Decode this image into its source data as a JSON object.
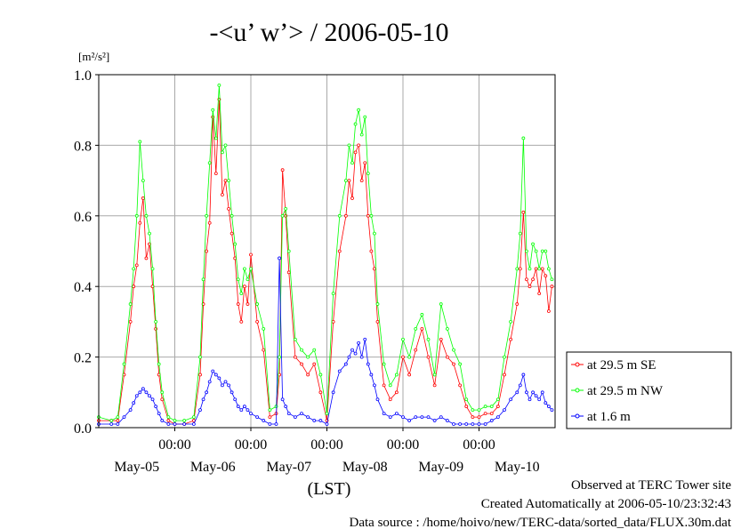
{
  "chart_data": {
    "type": "line",
    "title": "-<u’ w’> / 2006-05-10",
    "ylabel_unit": "[m²/s²]",
    "xlabel": "(LST)",
    "ylim": [
      0,
      1.0
    ],
    "yticks": [
      "0.0",
      "0.2",
      "0.4",
      "0.6",
      "0.8",
      "1.0"
    ],
    "xlim_hours": [
      0,
      144
    ],
    "xtick_time_labels": [
      "00:00",
      "00:00",
      "00:00",
      "00:00",
      "00:00"
    ],
    "xtick_date_labels": [
      "May-05",
      "May-06",
      "May-07",
      "May-08",
      "May-09",
      "May-10"
    ],
    "grid": true,
    "legend_position": "right",
    "series": [
      {
        "name": "at 29.5 m SE",
        "color": "#ff0000",
        "x": [
          0,
          4,
          6,
          8,
          10,
          11,
          12,
          13,
          14,
          15,
          16,
          17,
          18,
          19,
          20,
          22,
          24,
          27,
          30,
          32,
          33,
          34,
          35,
          36,
          37,
          38,
          39,
          40,
          41,
          42,
          43,
          44,
          45,
          46,
          47,
          48,
          50,
          52,
          54,
          56,
          57,
          58,
          59,
          60,
          62,
          64,
          66,
          68,
          70,
          72,
          74,
          76,
          78,
          79,
          80,
          81,
          82,
          83,
          84,
          85,
          86,
          87,
          88,
          90,
          92,
          94,
          96,
          98,
          100,
          102,
          104,
          106,
          108,
          110,
          112,
          114,
          116,
          118,
          120,
          122,
          124,
          126,
          128,
          130,
          132,
          133,
          134,
          135,
          136,
          137,
          138,
          139,
          140,
          141,
          142,
          143
        ],
        "y": [
          0.02,
          0.02,
          0.02,
          0.15,
          0.3,
          0.4,
          0.46,
          0.58,
          0.65,
          0.48,
          0.52,
          0.4,
          0.28,
          0.15,
          0.08,
          0.02,
          0.01,
          0.01,
          0.02,
          0.15,
          0.35,
          0.5,
          0.58,
          0.88,
          0.72,
          0.93,
          0.66,
          0.7,
          0.62,
          0.55,
          0.48,
          0.35,
          0.3,
          0.4,
          0.35,
          0.49,
          0.3,
          0.22,
          0.03,
          0.04,
          0.15,
          0.73,
          0.6,
          0.44,
          0.2,
          0.18,
          0.15,
          0.18,
          0.1,
          0.02,
          0.3,
          0.5,
          0.6,
          0.7,
          0.65,
          0.78,
          0.8,
          0.7,
          0.75,
          0.6,
          0.5,
          0.45,
          0.3,
          0.12,
          0.08,
          0.1,
          0.2,
          0.15,
          0.22,
          0.28,
          0.2,
          0.12,
          0.25,
          0.2,
          0.18,
          0.12,
          0.06,
          0.03,
          0.03,
          0.04,
          0.04,
          0.06,
          0.15,
          0.25,
          0.35,
          0.45,
          0.61,
          0.42,
          0.4,
          0.42,
          0.45,
          0.38,
          0.45,
          0.43,
          0.33,
          0.4
        ]
      },
      {
        "name": "at 29.5 m NW",
        "color": "#00ff00",
        "x": [
          0,
          4,
          6,
          8,
          10,
          11,
          12,
          13,
          14,
          15,
          16,
          17,
          18,
          19,
          20,
          22,
          24,
          27,
          30,
          32,
          33,
          34,
          35,
          36,
          37,
          38,
          39,
          40,
          41,
          42,
          43,
          44,
          45,
          46,
          47,
          48,
          50,
          52,
          54,
          56,
          57,
          58,
          59,
          60,
          62,
          64,
          66,
          68,
          70,
          72,
          74,
          76,
          78,
          79,
          80,
          81,
          82,
          83,
          84,
          85,
          86,
          87,
          88,
          90,
          92,
          94,
          96,
          98,
          100,
          102,
          104,
          106,
          108,
          110,
          112,
          114,
          116,
          118,
          120,
          122,
          124,
          126,
          128,
          130,
          132,
          133,
          134,
          135,
          136,
          137,
          138,
          139,
          140,
          141,
          142,
          143
        ],
        "y": [
          0.03,
          0.02,
          0.03,
          0.18,
          0.35,
          0.45,
          0.6,
          0.81,
          0.7,
          0.6,
          0.55,
          0.45,
          0.3,
          0.18,
          0.1,
          0.03,
          0.02,
          0.02,
          0.03,
          0.2,
          0.42,
          0.6,
          0.75,
          0.9,
          0.82,
          0.97,
          0.78,
          0.8,
          0.7,
          0.6,
          0.52,
          0.42,
          0.38,
          0.45,
          0.42,
          0.45,
          0.35,
          0.28,
          0.05,
          0.06,
          0.2,
          0.6,
          0.62,
          0.5,
          0.25,
          0.22,
          0.2,
          0.22,
          0.15,
          0.04,
          0.38,
          0.6,
          0.7,
          0.8,
          0.75,
          0.86,
          0.9,
          0.83,
          0.88,
          0.72,
          0.6,
          0.55,
          0.35,
          0.18,
          0.12,
          0.15,
          0.25,
          0.2,
          0.28,
          0.32,
          0.25,
          0.15,
          0.35,
          0.28,
          0.22,
          0.18,
          0.08,
          0.05,
          0.05,
          0.06,
          0.06,
          0.08,
          0.2,
          0.3,
          0.45,
          0.55,
          0.82,
          0.5,
          0.45,
          0.52,
          0.5,
          0.45,
          0.5,
          0.5,
          0.45,
          0.42
        ]
      },
      {
        "name": "at 1.6 m",
        "color": "#0000ff",
        "x": [
          0,
          4,
          6,
          8,
          10,
          11,
          12,
          13,
          14,
          15,
          16,
          17,
          18,
          19,
          20,
          22,
          24,
          27,
          30,
          32,
          33,
          34,
          35,
          36,
          37,
          38,
          39,
          40,
          41,
          42,
          43,
          44,
          45,
          46,
          47,
          48,
          50,
          52,
          54,
          56,
          57,
          58,
          59,
          60,
          62,
          64,
          66,
          68,
          70,
          72,
          74,
          76,
          78,
          79,
          80,
          81,
          82,
          83,
          84,
          85,
          86,
          87,
          88,
          90,
          92,
          94,
          96,
          98,
          100,
          102,
          104,
          106,
          108,
          110,
          112,
          114,
          116,
          118,
          120,
          122,
          124,
          126,
          128,
          130,
          132,
          133,
          134,
          135,
          136,
          137,
          138,
          139,
          140,
          141,
          142,
          143
        ],
        "y": [
          0.01,
          0.01,
          0.01,
          0.03,
          0.05,
          0.07,
          0.09,
          0.1,
          0.11,
          0.1,
          0.09,
          0.08,
          0.06,
          0.04,
          0.02,
          0.01,
          0.01,
          0.01,
          0.01,
          0.05,
          0.08,
          0.1,
          0.13,
          0.16,
          0.15,
          0.14,
          0.12,
          0.13,
          0.12,
          0.1,
          0.08,
          0.06,
          0.05,
          0.06,
          0.05,
          0.04,
          0.03,
          0.02,
          0.01,
          0.01,
          0.48,
          0.08,
          0.06,
          0.04,
          0.03,
          0.04,
          0.03,
          0.02,
          0.02,
          0.01,
          0.1,
          0.16,
          0.18,
          0.2,
          0.22,
          0.21,
          0.24,
          0.2,
          0.25,
          0.18,
          0.15,
          0.12,
          0.08,
          0.04,
          0.03,
          0.04,
          0.03,
          0.02,
          0.03,
          0.03,
          0.03,
          0.02,
          0.03,
          0.02,
          0.01,
          0.01,
          0.01,
          0.01,
          0.01,
          0.01,
          0.02,
          0.03,
          0.05,
          0.08,
          0.1,
          0.12,
          0.15,
          0.1,
          0.08,
          0.1,
          0.09,
          0.08,
          0.1,
          0.07,
          0.06,
          0.05
        ]
      }
    ]
  },
  "footer": {
    "line1": "Observed at TERC Tower site",
    "line2": "Created Automatically at 2006-05-10/23:32:43",
    "line3": "Data source : /home/hoivo/new/TERC-data/sorted_data/FLUX.30m.dat"
  }
}
